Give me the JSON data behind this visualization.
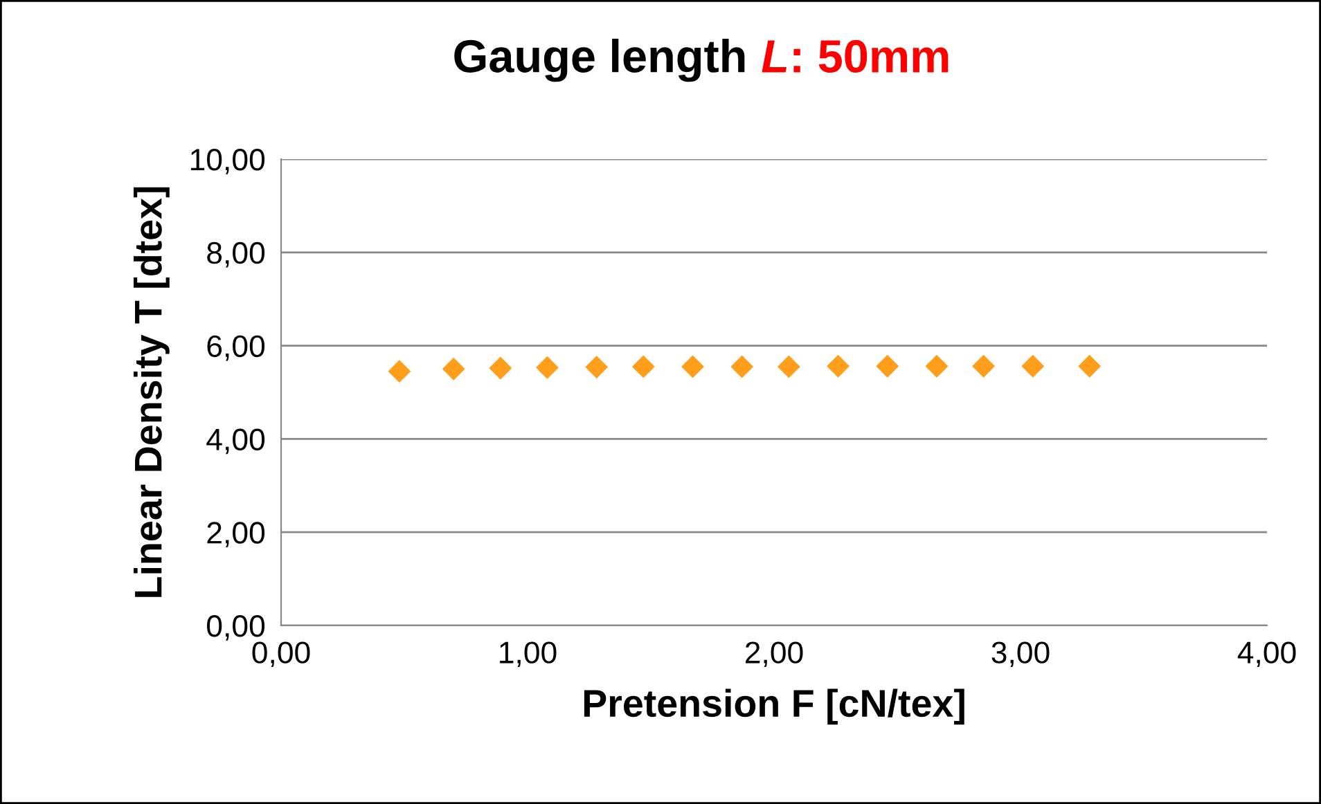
{
  "chart_data": {
    "type": "scatter",
    "title": "Gauge length L: 50mm",
    "xlabel": "Pretension F [cN/tex]",
    "ylabel": "Linear Density T [dtex]",
    "x": [
      0.48,
      0.7,
      0.89,
      1.08,
      1.28,
      1.47,
      1.67,
      1.87,
      2.06,
      2.26,
      2.46,
      2.66,
      2.85,
      3.05,
      3.28
    ],
    "values": [
      5.45,
      5.5,
      5.52,
      5.53,
      5.54,
      5.55,
      5.55,
      5.55,
      5.55,
      5.56,
      5.56,
      5.56,
      5.56,
      5.56,
      5.56
    ],
    "color": "#ff9e1b",
    "marker": "diamond",
    "grid": "y",
    "legend": false,
    "xlim": [
      0,
      4
    ],
    "ylim": [
      0,
      10
    ],
    "xticks": [
      {
        "value": 0,
        "label": "0,00"
      },
      {
        "value": 1,
        "label": "1,00"
      },
      {
        "value": 2,
        "label": "2,00"
      },
      {
        "value": 3,
        "label": "3,00"
      },
      {
        "value": 4,
        "label": "4,00"
      }
    ],
    "yticks": [
      {
        "value": 0,
        "label": "0,00"
      },
      {
        "value": 2,
        "label": "2,00"
      },
      {
        "value": 4,
        "label": "4,00"
      },
      {
        "value": 6,
        "label": "6,00"
      },
      {
        "value": 8,
        "label": "8,00"
      },
      {
        "value": 10,
        "label": "10,00"
      }
    ]
  }
}
